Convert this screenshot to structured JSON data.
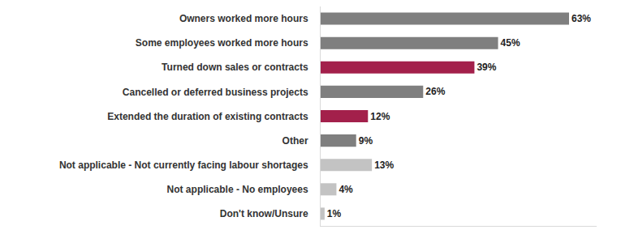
{
  "chart_data": {
    "type": "bar",
    "orientation": "horizontal",
    "categories": [
      "Owners worked more hours",
      "Some employees worked more hours",
      "Turned down sales or contracts",
      "Cancelled or deferred business projects",
      "Extended the duration of existing contracts",
      "Other",
      "Not applicable - Not currently facing labour shortages",
      "Not applicable - No employees",
      "Don't know/Unsure"
    ],
    "values": [
      63,
      45,
      39,
      26,
      12,
      9,
      13,
      4,
      1
    ],
    "value_labels": [
      "63%",
      "45%",
      "39%",
      "26%",
      "12%",
      "9%",
      "13%",
      "4%",
      "1%"
    ],
    "colors": [
      "#7f7f7f",
      "#7f7f7f",
      "#a3204b",
      "#7f7f7f",
      "#a3204b",
      "#7f7f7f",
      "#c3c3c3",
      "#c3c3c3",
      "#c3c3c3"
    ],
    "xlim": [
      0,
      70
    ],
    "grid": false,
    "data_labels": true,
    "tick_labels": "y"
  }
}
